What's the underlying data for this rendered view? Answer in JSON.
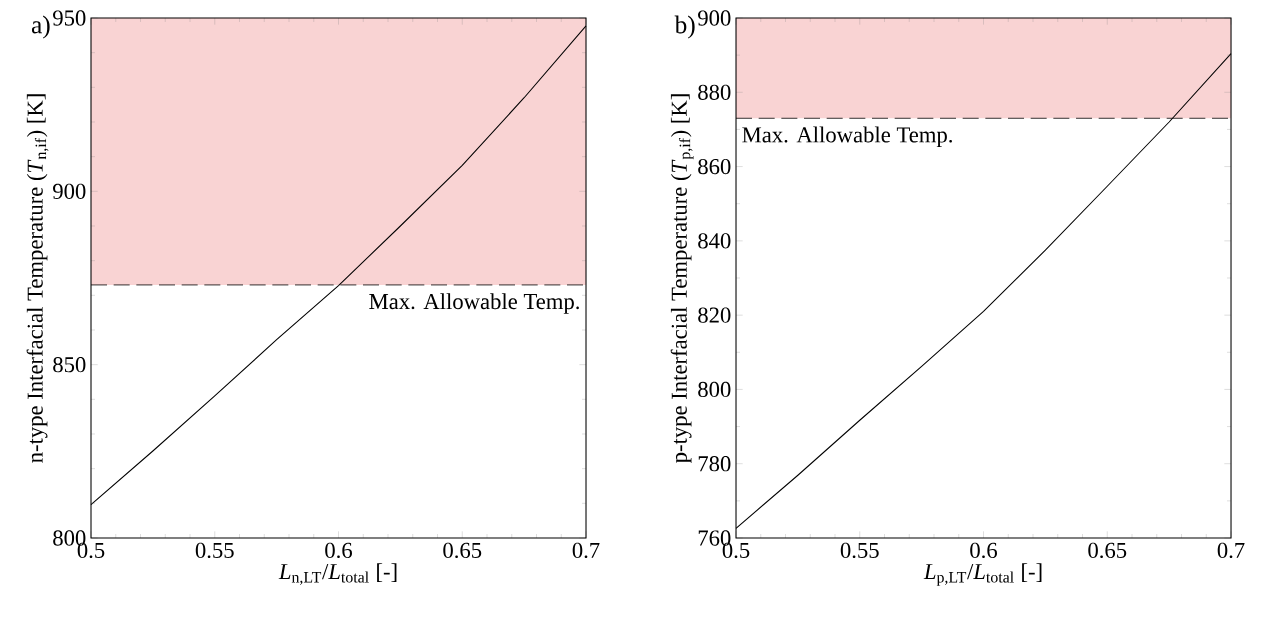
{
  "chart_data": [
    {
      "type": "line",
      "title": "a)",
      "xlabel": "*L*$_{n,LT}$/*L*$_{total}$ [-]",
      "ylabel": "n-type Interfacial Temperature (*T*$_{n,if}$) [K]",
      "x": [
        0.5,
        0.525,
        0.55,
        0.575,
        0.6,
        0.625,
        0.65,
        0.675,
        0.7
      ],
      "series": [
        {
          "color": "#000000",
          "values": [
            809.6,
            825.1,
            841.0,
            857.2,
            872.8,
            890.0,
            907.5,
            927.0,
            947.7
          ]
        }
      ],
      "xlim": [
        0.5,
        0.7
      ],
      "xticks": [
        0.5,
        0.55,
        0.6,
        0.65,
        0.7
      ],
      "ylim": [
        800,
        950
      ],
      "yticks": [
        800,
        850,
        900,
        950
      ],
      "bands": [
        {
          "axis": "y",
          "from": 873,
          "to": 950,
          "color": "#f9d3d3"
        }
      ],
      "ref_lines": [
        {
          "axis": "y",
          "value": 873,
          "label": "Max. Allowable Temp.",
          "line_style": "dashed",
          "color": "#000000"
        }
      ]
    },
    {
      "type": "line",
      "title": "b)",
      "xlabel": "*L*$_{p,LT}$/*L*$_{total}$ [-]",
      "ylabel": "p-type Interfacial Temperature (*T*$_{p,if}$) [K]",
      "x": [
        0.5,
        0.525,
        0.55,
        0.575,
        0.6,
        0.625,
        0.65,
        0.675,
        0.7
      ],
      "series": [
        {
          "color": "#000000",
          "values": [
            762.6,
            776.9,
            791.7,
            806.2,
            821.0,
            837.5,
            854.7,
            872.0,
            890.4
          ]
        }
      ],
      "xlim": [
        0.5,
        0.7
      ],
      "xticks": [
        0.5,
        0.55,
        0.6,
        0.65,
        0.7
      ],
      "ylim": [
        760,
        900
      ],
      "yticks": [
        760,
        780,
        800,
        820,
        840,
        860,
        880,
        900
      ],
      "bands": [
        {
          "axis": "y",
          "from": 873,
          "to": 900,
          "color": "#f9d3d3"
        }
      ],
      "ref_lines": [
        {
          "axis": "y",
          "value": 873,
          "label": "Max. Allowable Temp.",
          "line_style": "dashed",
          "color": "#000000"
        }
      ]
    }
  ]
}
